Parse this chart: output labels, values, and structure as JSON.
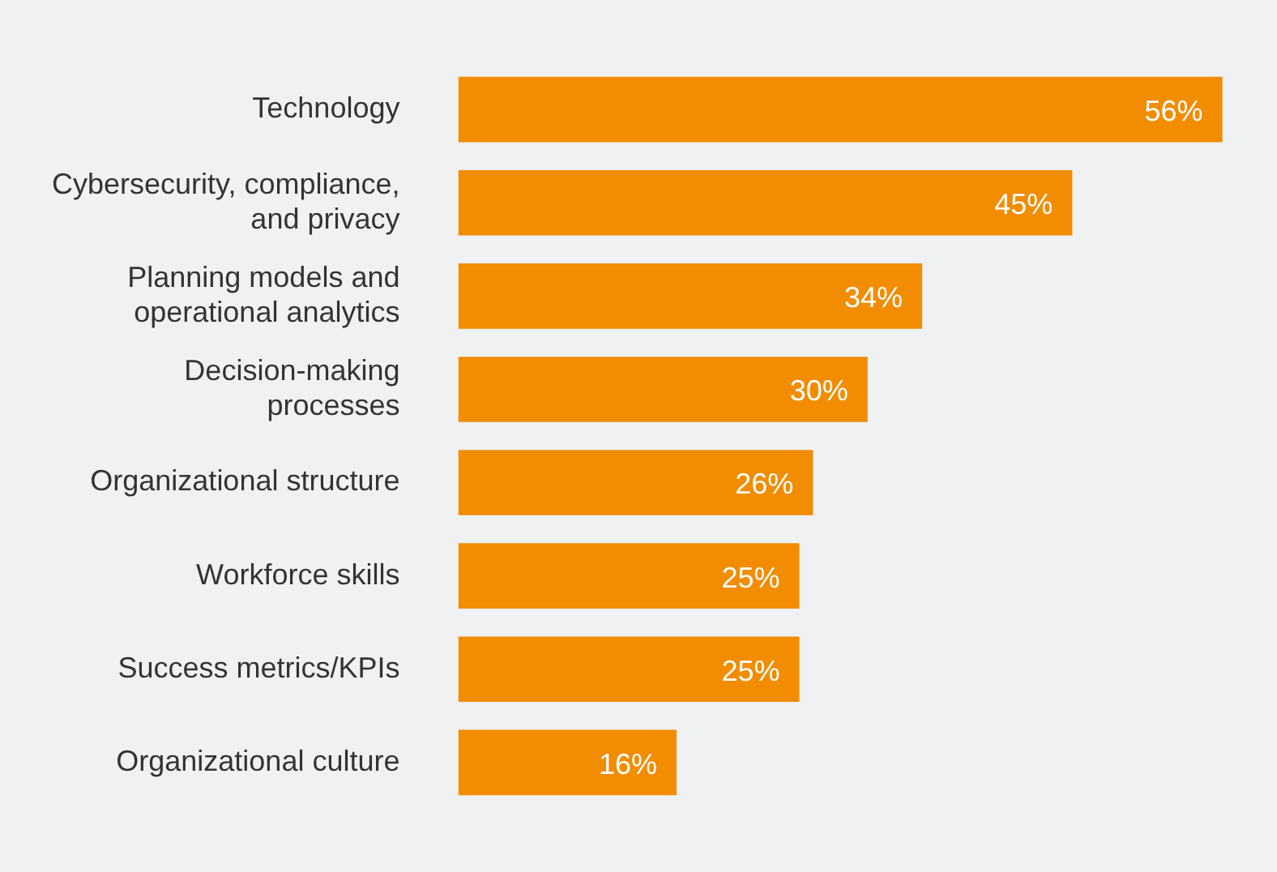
{
  "chart_data": {
    "type": "bar",
    "orientation": "horizontal",
    "categories": [
      "Technology",
      "Cybersecurity, compliance, and privacy",
      "Planning models and operational analytics",
      "Decision-making processes",
      "Organizational structure",
      "Workforce skills",
      "Success metrics/KPIs",
      "Organizational culture"
    ],
    "values": [
      56,
      45,
      34,
      30,
      26,
      25,
      25,
      16
    ],
    "value_labels": [
      "56%",
      "45%",
      "34%",
      "30%",
      "26%",
      "25%",
      "25%",
      "16%"
    ],
    "color": "#f28c00",
    "tick_labels": "y",
    "grid": false,
    "legend": false
  }
}
